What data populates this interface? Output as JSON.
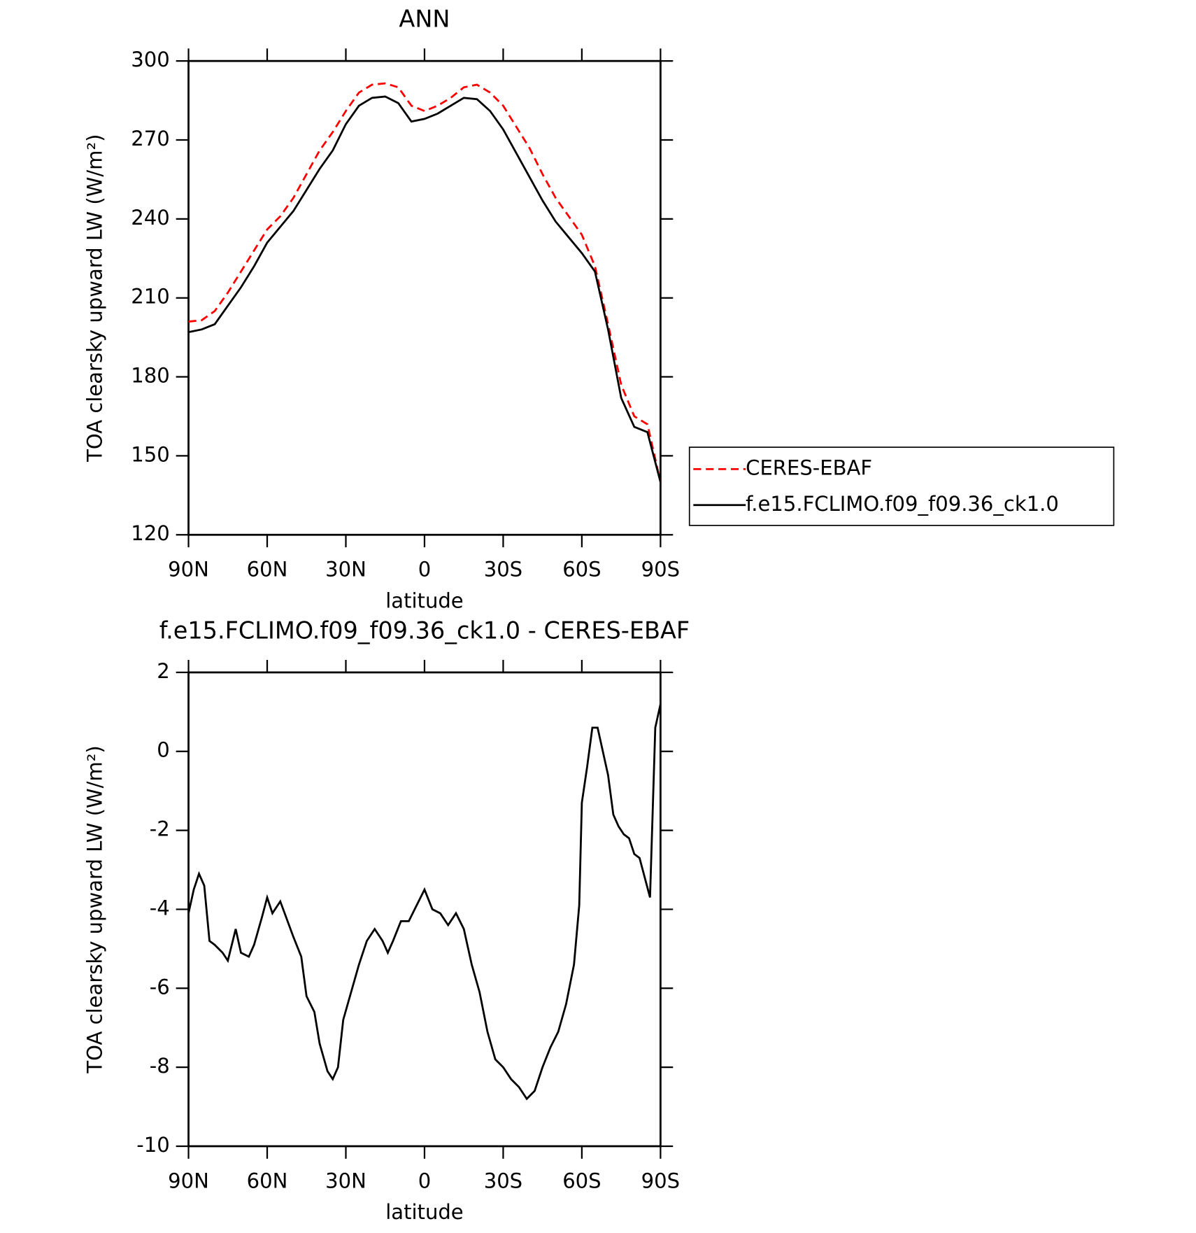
{
  "chart_data": [
    {
      "type": "line",
      "title": "ANN",
      "xlabel": "latitude",
      "ylabel": "TOA clearsky upward LW (W/m²)",
      "xlim": [
        90,
        -90
      ],
      "xticks": [
        {
          "value": 90,
          "label": "90N"
        },
        {
          "value": 60,
          "label": "60N"
        },
        {
          "value": 30,
          "label": "30N"
        },
        0,
        {
          "value": -30,
          "label": "30S"
        },
        {
          "value": -60,
          "label": "60S"
        },
        {
          "value": -90,
          "label": "90S"
        }
      ],
      "ylim": [
        120,
        300
      ],
      "yticks": [
        120,
        150,
        180,
        210,
        240,
        270,
        300
      ],
      "legend": "right",
      "x": [
        90,
        85,
        80,
        75,
        70,
        65,
        60,
        55,
        50,
        45,
        40,
        35,
        30,
        25,
        20,
        15,
        10,
        5,
        0,
        -5,
        -10,
        -15,
        -20,
        -25,
        -30,
        -35,
        -40,
        -45,
        -50,
        -55,
        -60,
        -65,
        -70,
        -75,
        -80,
        -85,
        -90
      ],
      "series": [
        {
          "name": "CERES-EBAF",
          "color": "#ff0000",
          "linestyle": "dashed",
          "values": [
            201,
            201.5,
            205,
            212,
            220,
            228,
            236,
            241,
            248,
            257,
            266,
            273,
            281,
            288,
            291,
            291.5,
            290,
            283,
            281,
            283,
            286,
            290,
            291,
            288,
            283,
            275,
            267,
            257,
            248,
            241,
            234,
            222,
            200,
            177,
            165,
            162,
            140
          ]
        },
        {
          "name": "f.e15.FCLIMO.f09_f09.36_ck1.0",
          "color": "#000000",
          "linestyle": "solid",
          "values": [
            197,
            198,
            200,
            207,
            214,
            222,
            231,
            237,
            243,
            251,
            259,
            266,
            276,
            283,
            286,
            286.5,
            284,
            277,
            278,
            280,
            283,
            286,
            285.5,
            281,
            274,
            265,
            256,
            247,
            239,
            233,
            227,
            220,
            198,
            172,
            161,
            159,
            140
          ]
        }
      ]
    },
    {
      "type": "line",
      "title": "f.e15.FCLIMO.f09_f09.36_ck1.0 - CERES-EBAF",
      "xlabel": "latitude",
      "ylabel": "TOA clearsky upward LW (W/m²)",
      "xlim": [
        90,
        -90
      ],
      "xticks": [
        {
          "value": 90,
          "label": "90N"
        },
        {
          "value": 60,
          "label": "60N"
        },
        {
          "value": 30,
          "label": "30N"
        },
        0,
        {
          "value": -30,
          "label": "30S"
        },
        {
          "value": -60,
          "label": "60S"
        },
        {
          "value": -90,
          "label": "90S"
        }
      ],
      "ylim": [
        -10,
        2
      ],
      "yticks": [
        -10,
        -8,
        -6,
        -4,
        -2,
        0,
        2
      ],
      "x": [
        90,
        88,
        86,
        84,
        82,
        80,
        77,
        75,
        72,
        70,
        67,
        65,
        62,
        60,
        58,
        55,
        50,
        47,
        45,
        42,
        40,
        37,
        35,
        33,
        31,
        28,
        25,
        22,
        19,
        16,
        14,
        12,
        9,
        6,
        3,
        0,
        -3,
        -6,
        -9,
        -12,
        -15,
        -18,
        -21,
        -24,
        -27,
        -30,
        -33,
        -36,
        -39,
        -42,
        -45,
        -48,
        -51,
        -54,
        -57,
        -59,
        -60,
        -62,
        -64,
        -66,
        -68,
        -70,
        -72,
        -74,
        -76,
        -78,
        -80,
        -82,
        -84,
        -86,
        -88,
        -90
      ],
      "series": [
        {
          "color": "#000000",
          "linestyle": "solid",
          "values": [
            -4.1,
            -3.5,
            -3.1,
            -3.4,
            -4.8,
            -4.9,
            -5.1,
            -5.3,
            -4.5,
            -5.1,
            -5.2,
            -4.9,
            -4.2,
            -3.7,
            -4.1,
            -3.8,
            -4.7,
            -5.2,
            -6.2,
            -6.6,
            -7.4,
            -8.1,
            -8.3,
            -8.0,
            -6.8,
            -6.1,
            -5.4,
            -4.8,
            -4.5,
            -4.8,
            -5.1,
            -4.8,
            -4.3,
            -4.3,
            -3.9,
            -3.5,
            -4.0,
            -4.1,
            -4.4,
            -4.1,
            -4.5,
            -5.4,
            -6.1,
            -7.1,
            -7.8,
            -8.0,
            -8.3,
            -8.5,
            -8.8,
            -8.6,
            -8.0,
            -7.5,
            -7.1,
            -6.4,
            -5.4,
            -3.9,
            -1.3,
            -0.4,
            0.6,
            0.6,
            0.0,
            -0.6,
            -1.6,
            -1.9,
            -2.1,
            -2.2,
            -2.6,
            -2.7,
            -3.2,
            -3.7,
            0.6,
            1.2
          ]
        }
      ]
    }
  ]
}
